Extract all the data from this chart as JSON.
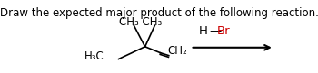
{
  "title": "Draw the expected major product of the following reaction.",
  "title_fontsize": 8.5,
  "title_color": "#000000",
  "background_color": "#ffffff",
  "molecule": {
    "ch3ch3_label": "CH₃ CH₃",
    "h3c_label": "H₃C",
    "ch2_label": "CH₂",
    "bond_color": "#000000",
    "label_fontsize": 8.5
  },
  "reagent": {
    "h_label": "H",
    "dash_label": "—",
    "br_label": "Br",
    "h_color": "#000000",
    "dash_color": "#000000",
    "br_color": "#cc0000",
    "fontsize": 9.5
  },
  "arrow": {
    "color": "#000000",
    "linewidth": 1.5
  }
}
